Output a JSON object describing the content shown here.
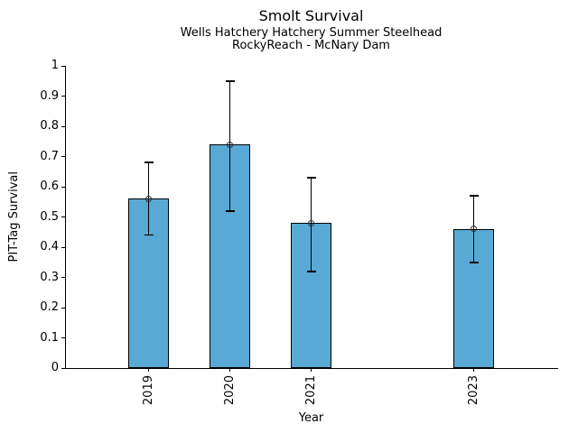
{
  "chart_data": {
    "type": "bar",
    "title": "Smolt Survival",
    "subtitle": [
      "Wells Hatchery Hatchery Summer Steelhead",
      "RockyReach - McNary Dam"
    ],
    "xlabel": "Year",
    "ylabel": "PIT-Tag Survival",
    "categories": [
      "2019",
      "2020",
      "2021",
      "2023"
    ],
    "x_positions": [
      0,
      1,
      2,
      4
    ],
    "values": [
      0.56,
      0.74,
      0.48,
      0.46
    ],
    "error_low": [
      0.44,
      0.52,
      0.32,
      0.35
    ],
    "error_high": [
      0.68,
      0.95,
      0.63,
      0.57
    ],
    "ylim": [
      0,
      1
    ],
    "yticks": [
      0,
      0.1,
      0.2,
      0.3,
      0.4,
      0.5,
      0.6,
      0.7,
      0.8,
      0.9,
      1
    ],
    "ytick_labels": [
      "0",
      "0.1",
      "0.2",
      "0.3",
      "0.4",
      "0.5",
      "0.6",
      "0.7",
      "0.8",
      "0.9",
      "1"
    ],
    "bar_color": "#58a9d4",
    "bar_edge_color": "#000000",
    "error_color": "#000000",
    "marker": "open-circle",
    "marker_color": "#2b2b2b",
    "grid": false,
    "legend": null
  }
}
